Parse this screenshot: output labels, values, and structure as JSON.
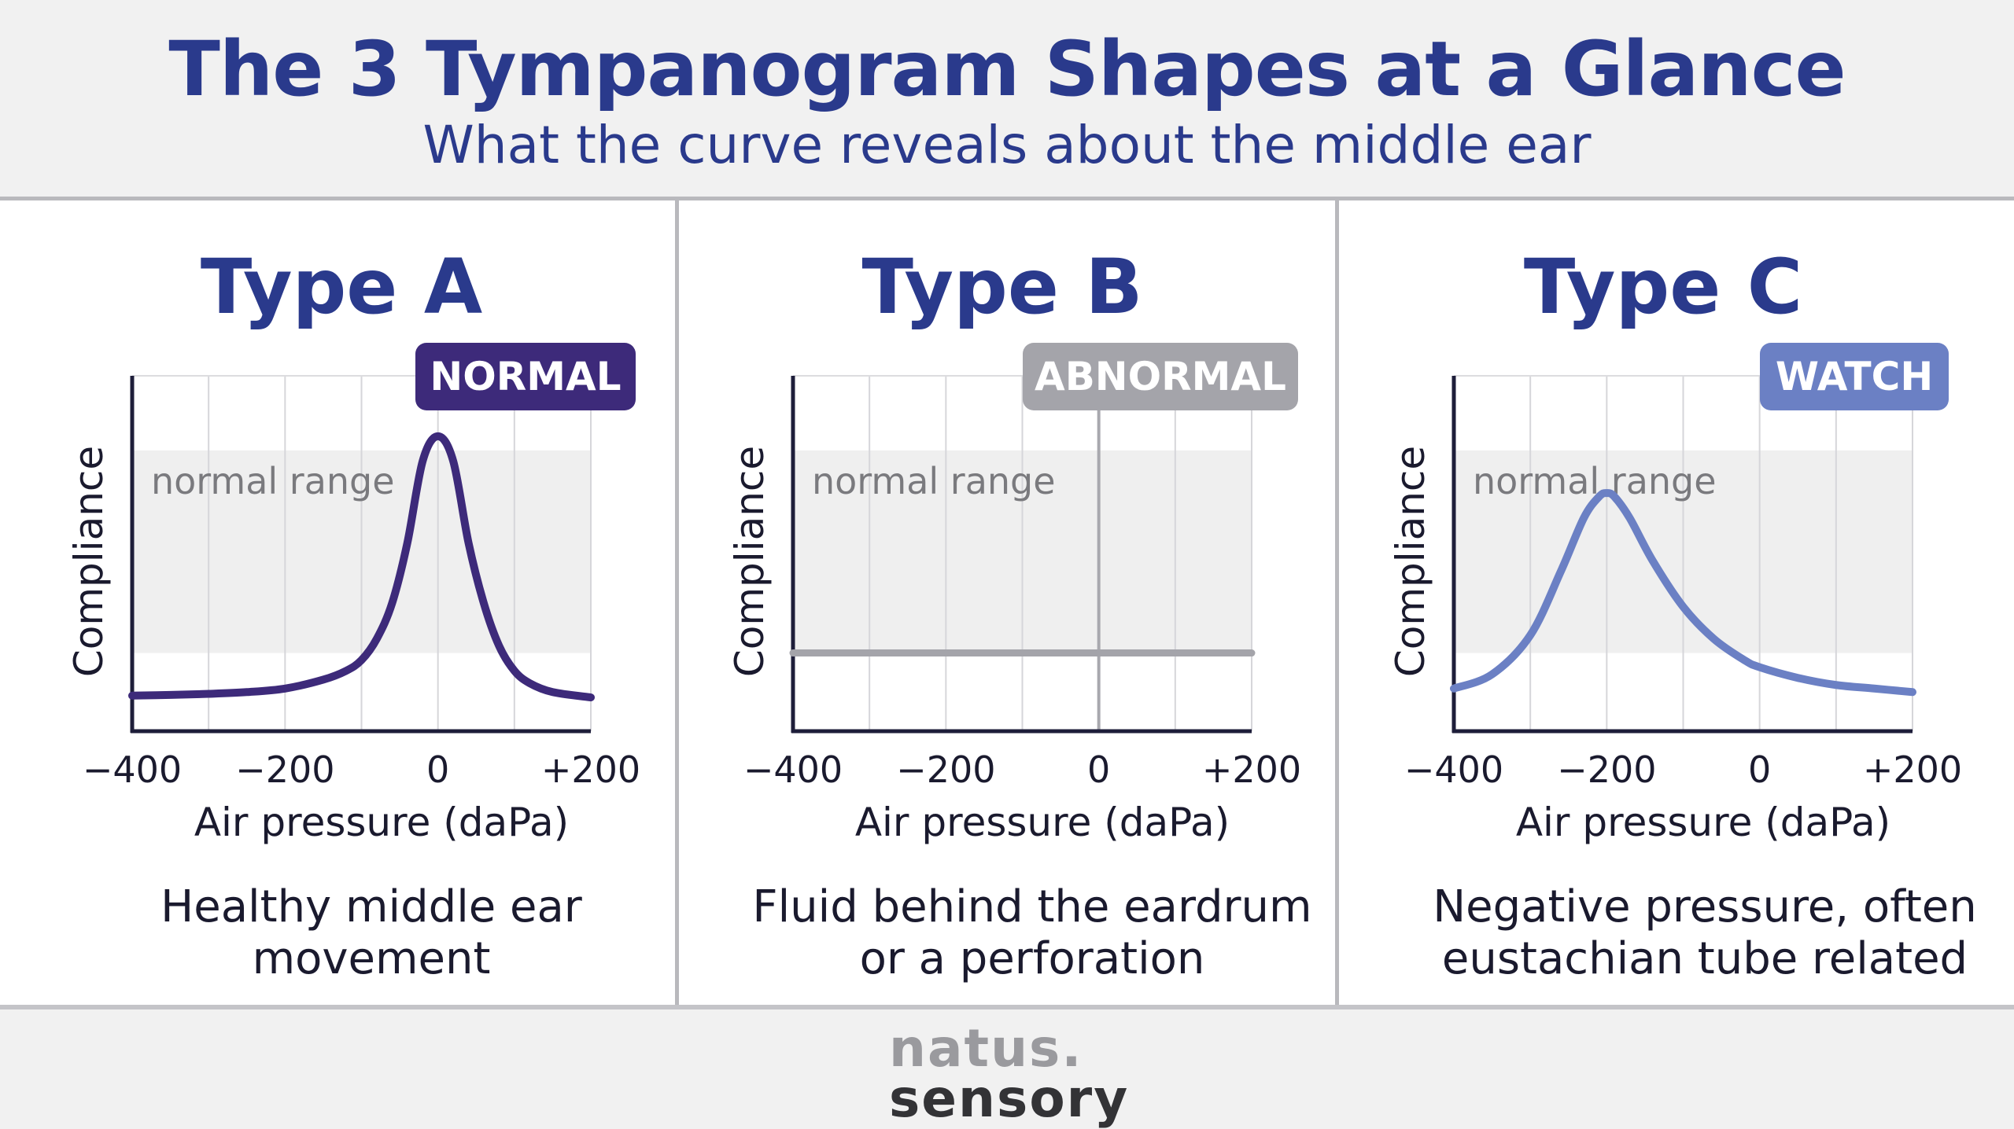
{
  "header": {
    "title": "The 3 Tympanogram Shapes at a Glance",
    "subtitle": "What the curve reveals about the middle ear"
  },
  "footer": {
    "logo_top": "natus.",
    "logo_bottom": "sensory"
  },
  "colors": {
    "type_a": "#3d2a7a",
    "type_b": "#a4a4aa",
    "type_c": "#6b80c4",
    "heading": "#2a3a8c",
    "normal_band": "#efefef"
  },
  "chart_data": [
    {
      "type": "line",
      "panel_title": "Type A",
      "badge": "NORMAL",
      "band_label": "normal range",
      "xlabel": "Air pressure (daPa)",
      "ylabel": "Compliance",
      "x_ticks": [
        -400,
        -200,
        0,
        200
      ],
      "x_tick_labels": [
        "−400",
        "−200",
        "0",
        "+200"
      ],
      "xlim": [
        -400,
        200
      ],
      "ylim": [
        0,
        1
      ],
      "normal_range": [
        0.22,
        0.79
      ],
      "series": [
        {
          "x": [
            -400,
            -350,
            -300,
            -250,
            -200,
            -150,
            -120,
            -100,
            -80,
            -60,
            -40,
            -20,
            0,
            20,
            40,
            60,
            80,
            100,
            120,
            150,
            200
          ],
          "y": [
            0.1,
            0.102,
            0.105,
            0.11,
            0.12,
            0.145,
            0.17,
            0.2,
            0.26,
            0.36,
            0.53,
            0.76,
            0.83,
            0.76,
            0.53,
            0.36,
            0.24,
            0.17,
            0.135,
            0.11,
            0.095
          ]
        }
      ],
      "description": "Healthy middle ear movement"
    },
    {
      "type": "line",
      "panel_title": "Type B",
      "badge": "ABNORMAL",
      "band_label": "normal range",
      "xlabel": "Air pressure (daPa)",
      "ylabel": "Compliance",
      "x_ticks": [
        -400,
        -200,
        0,
        200
      ],
      "x_tick_labels": [
        "−400",
        "−200",
        "0",
        "+200"
      ],
      "xlim": [
        -400,
        200
      ],
      "ylim": [
        0,
        1
      ],
      "normal_range": [
        0.22,
        0.79
      ],
      "series": [
        {
          "x": [
            -400,
            200
          ],
          "y": [
            0.22,
            0.22
          ]
        }
      ],
      "description": "Fluid behind the eardrum or a perforation"
    },
    {
      "type": "line",
      "panel_title": "Type C",
      "badge": "WATCH",
      "band_label": "normal range",
      "xlabel": "Air pressure (daPa)",
      "ylabel": "Compliance",
      "x_ticks": [
        -400,
        -200,
        0,
        200
      ],
      "x_tick_labels": [
        "−400",
        "−200",
        "0",
        "+200"
      ],
      "xlim": [
        -400,
        200
      ],
      "ylim": [
        0,
        1
      ],
      "normal_range": [
        0.22,
        0.79
      ],
      "series": [
        {
          "x": [
            -400,
            -350,
            -300,
            -260,
            -230,
            -210,
            -200,
            -190,
            -170,
            -140,
            -100,
            -60,
            -20,
            0,
            50,
            100,
            150,
            200
          ],
          "y": [
            0.12,
            0.16,
            0.27,
            0.45,
            0.6,
            0.66,
            0.67,
            0.66,
            0.6,
            0.48,
            0.35,
            0.26,
            0.2,
            0.18,
            0.15,
            0.13,
            0.12,
            0.11
          ]
        }
      ],
      "description": "Negative pressure, often eustachian tube related"
    }
  ]
}
